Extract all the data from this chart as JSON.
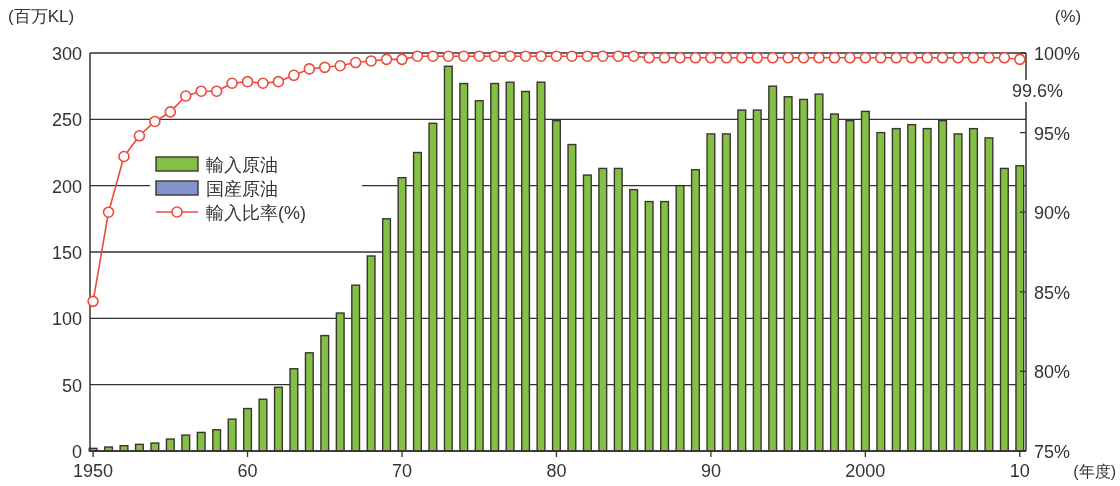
{
  "chart_data": {
    "type": "bar",
    "ylabel": "(百万KL)",
    "y2label": "(%)",
    "xlabel": "(年度)",
    "x": [
      1950,
      1951,
      1952,
      1953,
      1954,
      1955,
      1956,
      1957,
      1958,
      1959,
      1960,
      1961,
      1962,
      1963,
      1964,
      1965,
      1966,
      1967,
      1968,
      1969,
      1970,
      1971,
      1972,
      1973,
      1974,
      1975,
      1976,
      1977,
      1978,
      1979,
      1980,
      1981,
      1982,
      1983,
      1984,
      1985,
      1986,
      1987,
      1988,
      1989,
      1990,
      1991,
      1992,
      1993,
      1994,
      1995,
      1996,
      1997,
      1998,
      1999,
      2000,
      2001,
      2002,
      2003,
      2004,
      2005,
      2006,
      2007,
      2008,
      2009,
      2010
    ],
    "xlim": [
      1949.8,
      2010.4
    ],
    "xticks": [
      {
        "value": 1950,
        "label": "1950"
      },
      {
        "value": 1960,
        "label": "60"
      },
      {
        "value": 1970,
        "label": "70"
      },
      {
        "value": 1980,
        "label": "80"
      },
      {
        "value": 1990,
        "label": "90"
      },
      {
        "value": 2000,
        "label": "2000"
      },
      {
        "value": 2010,
        "label": "10"
      }
    ],
    "ylim": [
      0,
      300
    ],
    "yticks": [
      0,
      50,
      100,
      150,
      200,
      250,
      300
    ],
    "y2lim": [
      75,
      100
    ],
    "y2ticks": [
      {
        "value": 75,
        "label": "75%"
      },
      {
        "value": 80,
        "label": "80%"
      },
      {
        "value": 85,
        "label": "85%"
      },
      {
        "value": 90,
        "label": "90%"
      },
      {
        "value": 95,
        "label": "95%"
      },
      {
        "value": 100,
        "label": "100%"
      }
    ],
    "grid": "y",
    "legend": "top left",
    "marker": "circle",
    "series": [
      {
        "name": "輸入原油",
        "color": "#84c044",
        "values": [
          2,
          3,
          4,
          5,
          6,
          9,
          12,
          14,
          16,
          24,
          32,
          39,
          48,
          62,
          74,
          87,
          104,
          125,
          147,
          175,
          206,
          225,
          247,
          290,
          277,
          264,
          277,
          278,
          271,
          278,
          249,
          231,
          208,
          213,
          213,
          197,
          188,
          188,
          200,
          212,
          239,
          239,
          257,
          257,
          275,
          267,
          265,
          269,
          254,
          249,
          256,
          240,
          243,
          246,
          243,
          249,
          239,
          243,
          236,
          213,
          215
        ]
      },
      {
        "name": "国産原油",
        "color": "#8096cc",
        "values": [
          null,
          null,
          null,
          null,
          null,
          null,
          null,
          null,
          null,
          null,
          null,
          null,
          null,
          null,
          null,
          null,
          null,
          null,
          null,
          null,
          null,
          null,
          null,
          null,
          null,
          null,
          null,
          null,
          null,
          null,
          null,
          null,
          null,
          null,
          null,
          null,
          null,
          null,
          null,
          null,
          null,
          null,
          null,
          null,
          null,
          null,
          null,
          null,
          null,
          null,
          null,
          null,
          null,
          null,
          null,
          null,
          null,
          null,
          null,
          null,
          null
        ]
      },
      {
        "name": "輸入比率(%)",
        "type": "line",
        "axis": "y2",
        "color": "#ee4a3c",
        "values": [
          84.4,
          90.0,
          93.5,
          94.8,
          95.7,
          96.3,
          97.3,
          97.6,
          97.6,
          98.1,
          98.2,
          98.1,
          98.2,
          98.6,
          99.0,
          99.1,
          99.2,
          99.4,
          99.5,
          99.6,
          99.6,
          99.8,
          99.8,
          99.8,
          99.8,
          99.8,
          99.8,
          99.8,
          99.8,
          99.8,
          99.8,
          99.8,
          99.8,
          99.8,
          99.8,
          99.8,
          99.7,
          99.7,
          99.7,
          99.7,
          99.7,
          99.7,
          99.7,
          99.7,
          99.7,
          99.7,
          99.7,
          99.7,
          99.7,
          99.7,
          99.7,
          99.7,
          99.7,
          99.7,
          99.7,
          99.7,
          99.7,
          99.7,
          99.7,
          99.7,
          99.6
        ]
      }
    ],
    "annotations": [
      "99.6%"
    ]
  }
}
